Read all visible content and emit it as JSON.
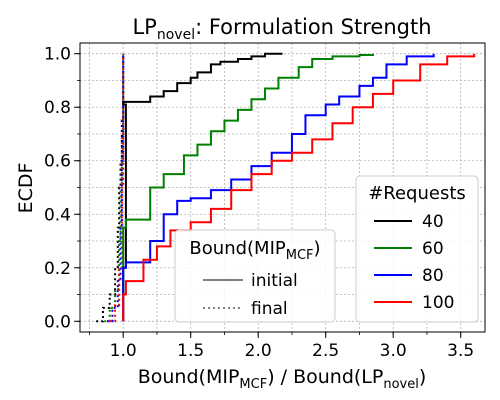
{
  "chart_data": {
    "type": "line",
    "title": "LP",
    "title_sub": "novel",
    "title_rest": ": Formulation Strength",
    "xlabel": {
      "a": "Bound(MIP",
      "a_sub": "MCF",
      "b": ") / Bound(LP",
      "b_sub": "novel",
      "c": ")"
    },
    "ylabel": "ECDF",
    "xlim": [
      0.68,
      3.68
    ],
    "ylim": [
      -0.04,
      1.04
    ],
    "xticks": [
      {
        "v": 1.0,
        "label": "1.0"
      },
      {
        "v": 1.5,
        "label": "1.5"
      },
      {
        "v": 2.0,
        "label": "2.0"
      },
      {
        "v": 2.5,
        "label": "2.5"
      },
      {
        "v": 3.0,
        "label": "3.0"
      },
      {
        "v": 3.5,
        "label": "3.5"
      }
    ],
    "yticks": [
      {
        "v": 0.0,
        "label": "0.0"
      },
      {
        "v": 0.2,
        "label": "0.2"
      },
      {
        "v": 0.4,
        "label": "0.4"
      },
      {
        "v": 0.6,
        "label": "0.6"
      },
      {
        "v": 0.8,
        "label": "0.8"
      },
      {
        "v": 1.0,
        "label": "1.0"
      }
    ],
    "grid": true,
    "colors": {
      "40": "#000000",
      "60": "#008000",
      "80": "#0000ff",
      "100": "#ff0000",
      "initial_legend": "#808080"
    },
    "series": [
      {
        "name": "40",
        "style": "solid",
        "color": "#000000",
        "x": [
          1.0,
          1.0,
          1.02,
          1.0,
          1.2,
          1.3,
          1.4,
          1.5,
          1.55,
          1.65,
          1.72,
          1.85,
          1.95,
          2.05,
          2.18
        ],
        "y": [
          0.0,
          0.2,
          0.81,
          0.82,
          0.84,
          0.86,
          0.89,
          0.91,
          0.93,
          0.96,
          0.97,
          0.98,
          0.99,
          1.0,
          1.0
        ]
      },
      {
        "name": "60",
        "style": "solid",
        "color": "#008000",
        "x": [
          1.0,
          1.0,
          1.02,
          1.2,
          1.3,
          1.45,
          1.55,
          1.65,
          1.75,
          1.85,
          1.95,
          2.05,
          2.15,
          2.3,
          2.4,
          2.55,
          2.75,
          2.85
        ],
        "y": [
          0.0,
          0.35,
          0.38,
          0.5,
          0.55,
          0.62,
          0.66,
          0.71,
          0.75,
          0.79,
          0.83,
          0.87,
          0.91,
          0.95,
          0.98,
          0.99,
          0.995,
          1.0
        ]
      },
      {
        "name": "80",
        "style": "solid",
        "color": "#0000ff",
        "x": [
          1.0,
          1.0,
          1.02,
          1.2,
          1.3,
          1.4,
          1.5,
          1.65,
          1.8,
          1.95,
          2.1,
          2.25,
          2.35,
          2.5,
          2.6,
          2.75,
          2.85,
          2.95,
          3.1,
          3.3
        ],
        "y": [
          0.0,
          0.2,
          0.22,
          0.3,
          0.4,
          0.45,
          0.46,
          0.49,
          0.53,
          0.58,
          0.63,
          0.7,
          0.77,
          0.81,
          0.84,
          0.88,
          0.91,
          0.96,
          0.99,
          1.0
        ]
      },
      {
        "name": "100",
        "style": "solid",
        "color": "#ff0000",
        "x": [
          1.0,
          1.0,
          1.02,
          1.15,
          1.25,
          1.35,
          1.5,
          1.65,
          1.8,
          1.95,
          2.1,
          2.25,
          2.4,
          2.55,
          2.7,
          2.85,
          3.0,
          3.2,
          3.4,
          3.6
        ],
        "y": [
          0.0,
          0.1,
          0.15,
          0.23,
          0.28,
          0.34,
          0.37,
          0.42,
          0.49,
          0.55,
          0.6,
          0.63,
          0.68,
          0.74,
          0.8,
          0.85,
          0.9,
          0.96,
          0.99,
          1.0
        ]
      },
      {
        "name": "40 final",
        "style": "dotted",
        "color": "#000000",
        "x": [
          0.8,
          0.85,
          0.9,
          0.94,
          0.96,
          0.97,
          0.98,
          0.99,
          1.0
        ],
        "y": [
          0.0,
          0.05,
          0.1,
          0.2,
          0.35,
          0.5,
          0.6,
          0.75,
          1.0
        ]
      },
      {
        "name": "60 final",
        "style": "dotted",
        "color": "#008000",
        "x": [
          0.86,
          0.9,
          0.94,
          0.97,
          0.98,
          0.99,
          1.0
        ],
        "y": [
          0.0,
          0.05,
          0.12,
          0.3,
          0.5,
          0.7,
          1.0
        ]
      },
      {
        "name": "80 final",
        "style": "dotted",
        "color": "#0000ff",
        "x": [
          0.88,
          0.92,
          0.96,
          0.98,
          0.99,
          1.0
        ],
        "y": [
          0.0,
          0.05,
          0.15,
          0.35,
          0.6,
          1.0
        ]
      },
      {
        "name": "100 final",
        "style": "dotted",
        "color": "#ff0000",
        "x": [
          0.9,
          0.94,
          0.97,
          0.99,
          1.0
        ],
        "y": [
          0.0,
          0.06,
          0.2,
          0.5,
          1.0
        ]
      }
    ],
    "legend_requests": {
      "title": "#Requests",
      "placement": "lower-right",
      "items": [
        {
          "label": "40",
          "color": "#000000"
        },
        {
          "label": "60",
          "color": "#008000"
        },
        {
          "label": "80",
          "color": "#0000ff"
        },
        {
          "label": "100",
          "color": "#ff0000"
        }
      ]
    },
    "legend_bound": {
      "title": "Bound(MIP",
      "title_sub": "MCF",
      "title_end": ")",
      "placement": "lower-center",
      "items": [
        {
          "label": "initial",
          "style": "solid"
        },
        {
          "label": "final",
          "style": "dotted"
        }
      ]
    }
  }
}
